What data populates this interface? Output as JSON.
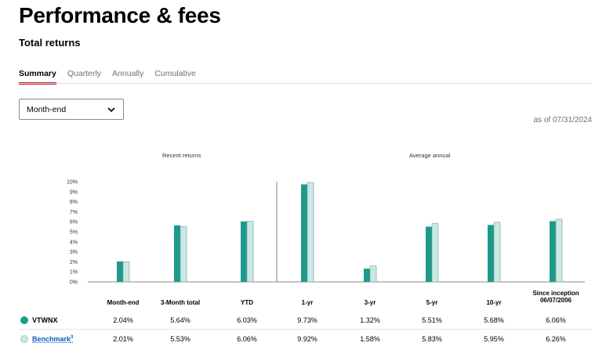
{
  "page": {
    "title": "Performance & fees",
    "section_title": "Total returns"
  },
  "tabs": [
    {
      "label": "Summary",
      "active": true
    },
    {
      "label": "Quarterly",
      "active": false
    },
    {
      "label": "Annually",
      "active": false
    },
    {
      "label": "Cumulative",
      "active": false
    }
  ],
  "dropdown": {
    "value": "Month-end",
    "icon": "chevron-down-icon"
  },
  "as_of": "as of 07/31/2024",
  "colors": {
    "fund": "#1f9a8a",
    "benchmark": "#c8e9e4",
    "accent": "#c0182a",
    "link": "#0b5fbd"
  },
  "chart_data": {
    "type": "bar",
    "groups": [
      "Recent returns",
      "Average annual"
    ],
    "categories": [
      "Month-end",
      "3-Month total",
      "YTD",
      "1-yr",
      "3-yr",
      "5-yr",
      "10-yr",
      "Since inception 06/07/2006"
    ],
    "y_ticks": [
      "0%",
      "1%",
      "2%",
      "3%",
      "4%",
      "5%",
      "6%",
      "7%",
      "8%",
      "9%",
      "10%"
    ],
    "ylim": [
      0,
      10
    ],
    "series": [
      {
        "name": "VTWNX",
        "values": [
          2.04,
          5.64,
          6.03,
          9.73,
          1.32,
          5.51,
          5.68,
          6.06
        ]
      },
      {
        "name": "Benchmark",
        "values": [
          2.01,
          5.53,
          6.06,
          9.92,
          1.58,
          5.83,
          5.95,
          6.26
        ]
      }
    ]
  },
  "table": {
    "headers": [
      "Month-end",
      "3-Month total",
      "YTD",
      "1-yr",
      "3-yr",
      "5-yr",
      "10-yr",
      "Since inception"
    ],
    "header_sub": "06/07/2006",
    "rows": [
      {
        "label": "VTWNX",
        "values": [
          "2.04%",
          "5.64%",
          "6.03%",
          "9.73%",
          "1.32%",
          "5.51%",
          "5.68%",
          "6.06%"
        ]
      },
      {
        "label": "Benchmark",
        "sup": "3",
        "values": [
          "2.01%",
          "5.53%",
          "6.06%",
          "9.92%",
          "1.58%",
          "5.83%",
          "5.95%",
          "6.26%"
        ]
      }
    ]
  }
}
